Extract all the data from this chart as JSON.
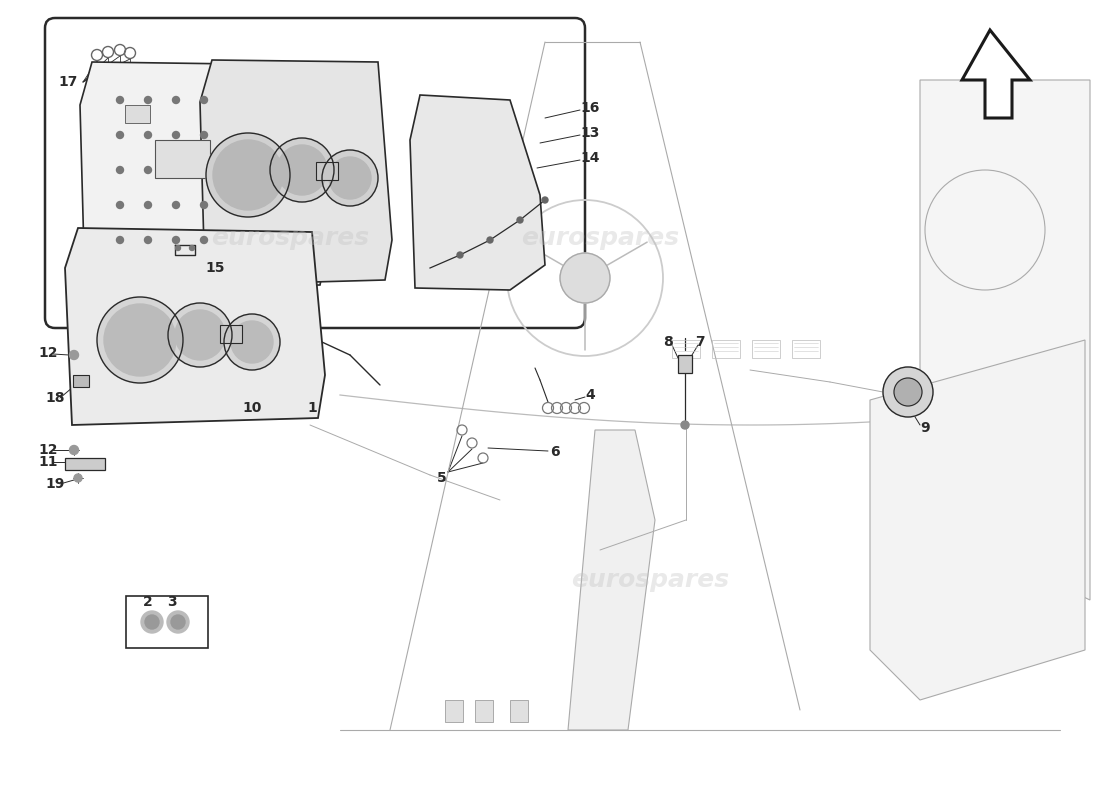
{
  "bg_color": "#ffffff",
  "line_color": "#2a2a2a",
  "light_line": "#888888",
  "very_light": "#cccccc",
  "watermark_color": "#c0c0c0",
  "watermark_alpha": 0.35,
  "watermark_text": "eurospares",
  "label_fontsize": 10
}
